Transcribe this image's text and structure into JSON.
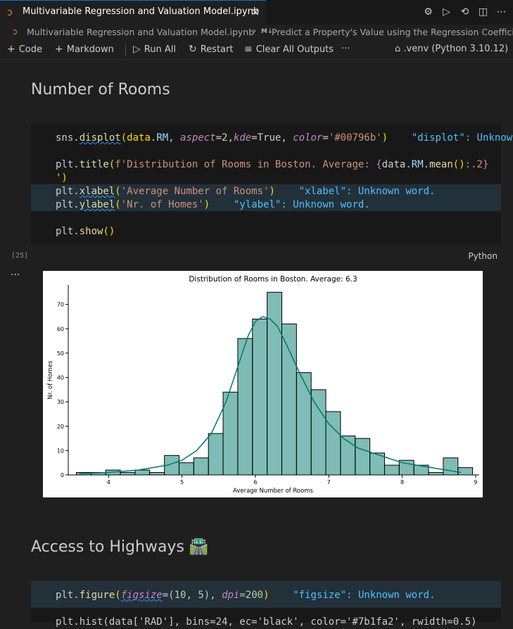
{
  "tab": {
    "title": "Multivariable Regression and Valuation Model.ipynb",
    "close_glyph": "×"
  },
  "breadcrumb": {
    "file": "Multivariable Regression and Valuation Model.ipynb",
    "md_badge": "M↓",
    "section": "Predict a Property's Value using the Regression Coefficients"
  },
  "toolbar": {
    "code": "Code",
    "markdown": "Markdown",
    "run_all": "Run All",
    "restart": "Restart",
    "clear_outputs": "Clear All Outputs",
    "more": "···",
    "kernel": ".venv (Python 3.10.12)"
  },
  "section1": {
    "heading": "Number of Rooms"
  },
  "cell1": {
    "l1": {
      "a": "sns.",
      "b": "displot",
      "c": "(data.",
      "d": "RM",
      "e": ", ",
      "f": "aspect",
      "g": "=2,",
      "h": "kde",
      "i": "=True, ",
      "j": "color",
      "k": "=",
      "l": "'#00796b'",
      "m": ")",
      "diag": "\"displot\": Unknown"
    },
    "l2": {
      "a": "plt.",
      "b": "title",
      "c": "(",
      "d": "f'Distribution of Rooms in Boston. Average: ",
      "e": "{",
      "f": "data.",
      "g": "RM",
      "h": ".",
      "i": "mean",
      "j": "()",
      "k": ":.2",
      "l": "}"
    },
    "l3": {
      "a": "')"
    },
    "l4": {
      "a": "plt.",
      "b": "xlabel",
      "c": "(",
      "d": "'Average Number of Rooms'",
      "e": ")",
      "diag": "\"xlabel\": Unknown word."
    },
    "l5": {
      "a": "plt.",
      "b": "ylabel",
      "c": "(",
      "d": "'Nr. of Homes'",
      "e": ")",
      "diag": "\"ylabel\": Unknown word."
    },
    "l6": {
      "a": "plt.",
      "b": "show",
      "c": "()"
    },
    "exec_count": "[25]",
    "language": "Python",
    "output_more": "···"
  },
  "chart_data": {
    "type": "bar",
    "title": "Distribution of Rooms in Boston. Average: 6.3",
    "xlabel": "Average Number of Rooms",
    "ylabel": "Nr. of Homes",
    "xlim": [
      3.45,
      9.05
    ],
    "ylim": [
      0,
      78
    ],
    "xticks": [
      4,
      5,
      6,
      7,
      8,
      9
    ],
    "yticks": [
      0,
      10,
      20,
      30,
      40,
      50,
      60,
      70
    ],
    "bar_color": "#00796b",
    "bin_edges": [
      3.56,
      3.76,
      3.96,
      4.16,
      4.36,
      4.56,
      4.76,
      4.96,
      5.16,
      5.36,
      5.56,
      5.76,
      5.96,
      6.16,
      6.36,
      6.56,
      6.76,
      6.96,
      7.16,
      7.36,
      7.56,
      7.76,
      7.96,
      8.16,
      8.36,
      8.56,
      8.76
    ],
    "counts": [
      1,
      1,
      2,
      1,
      2,
      1,
      8,
      5,
      7,
      17,
      34,
      56,
      64,
      75,
      62,
      42,
      35,
      26,
      16,
      15,
      9,
      4,
      6,
      4,
      1,
      7,
      3
    ],
    "kde": {
      "x": [
        3.6,
        4.0,
        4.4,
        4.8,
        5.0,
        5.2,
        5.4,
        5.6,
        5.8,
        5.9,
        6.0,
        6.1,
        6.2,
        6.3,
        6.4,
        6.6,
        6.8,
        7.0,
        7.2,
        7.4,
        7.6,
        7.8,
        8.0,
        8.2,
        8.4,
        8.6,
        8.8
      ],
      "y": [
        0.5,
        1,
        2,
        4,
        6,
        10,
        17,
        30,
        48,
        57,
        63,
        65,
        64,
        61,
        55,
        42,
        30,
        21,
        15,
        11,
        9,
        7,
        5,
        4,
        3,
        2,
        1
      ]
    }
  },
  "section2": {
    "heading": "Access to Highways",
    "emoji": "🛣️"
  },
  "cell2": {
    "l1": {
      "a": "plt.",
      "b": "figure",
      "c": "(",
      "d": "figsize",
      "e": "=",
      "f": "(10, 5)",
      "g": ", ",
      "h": "dpi",
      "i": "=200",
      "j": ")",
      "diag": "\"figsize\": Unknown word."
    },
    "l2": {
      "a": "plt.hist(data['RAD'], bins=24, ec='black', color='#7b1fa2', rwidth=0.5)"
    }
  }
}
